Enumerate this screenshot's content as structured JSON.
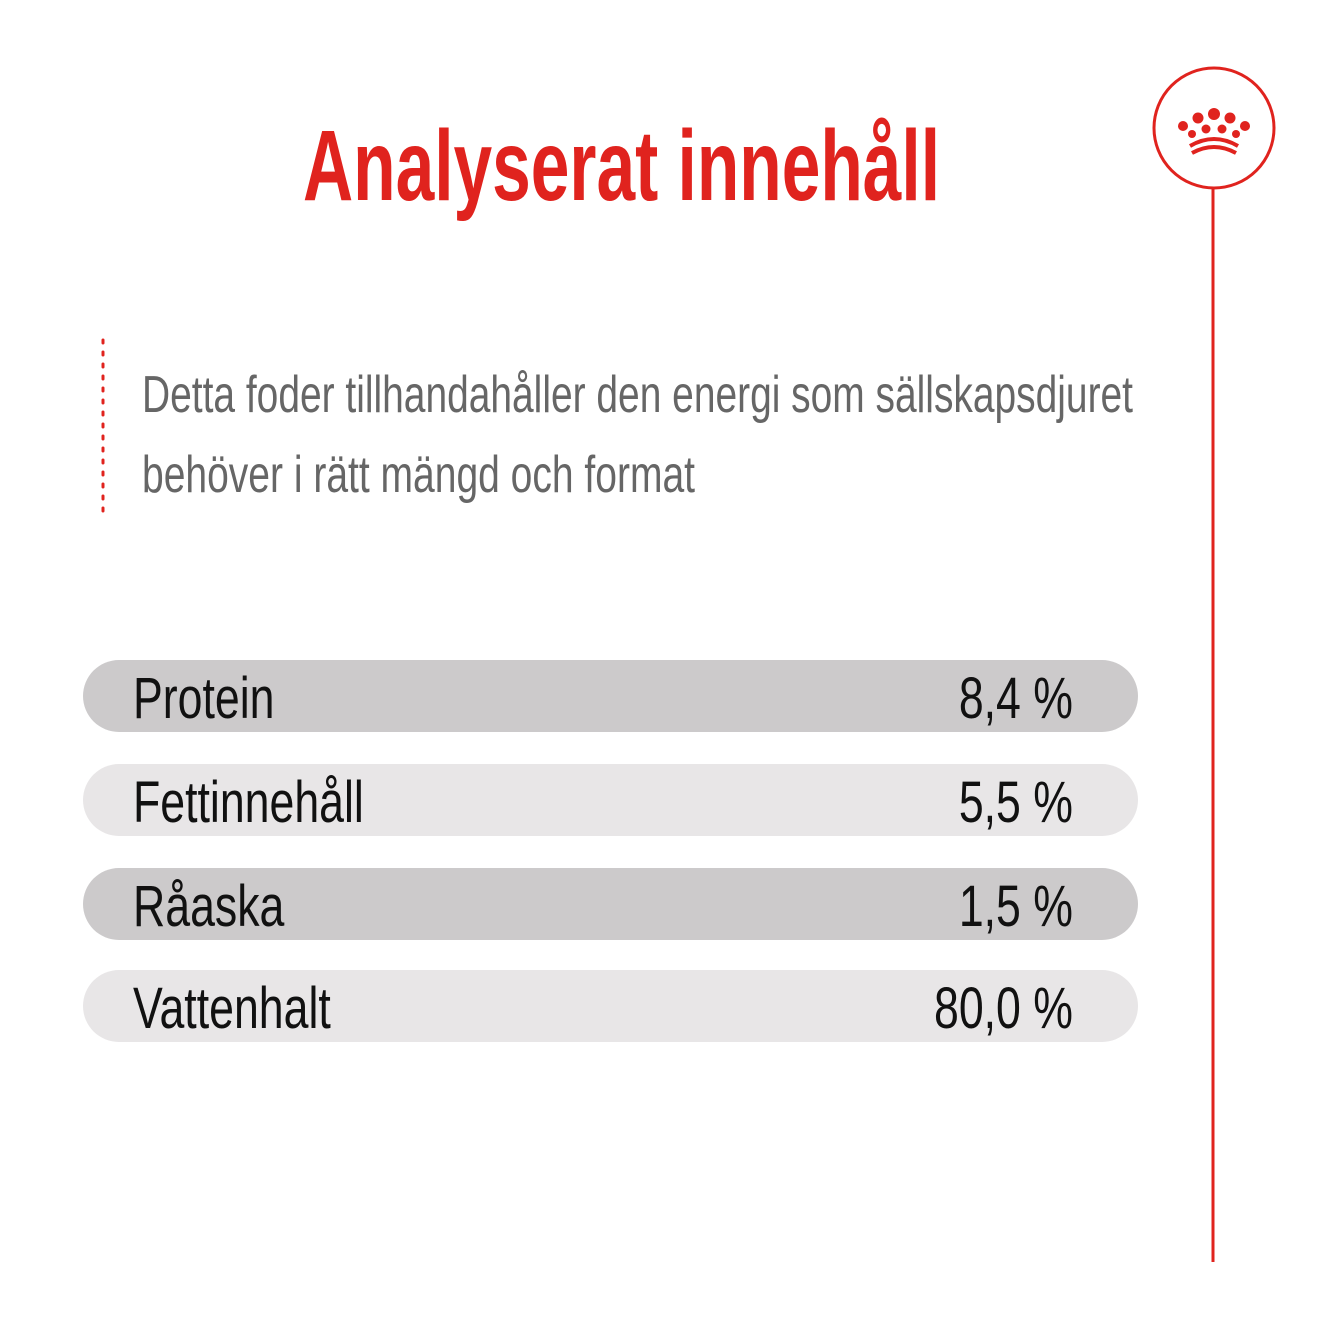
{
  "header": {
    "title": "Analyserat innehåll"
  },
  "intro": {
    "lines": [
      "Detta foder tillhandahåller den energi som sällskapsdjuret",
      "behöver i rätt mängd och format"
    ]
  },
  "table": {
    "rows": [
      [
        "Protein",
        "8,4 %"
      ],
      [
        "Fettinnehåll",
        "5,5 %"
      ],
      [
        "Råaska",
        "1,5 %"
      ],
      [
        "Vattenhalt",
        "80,0 %"
      ]
    ]
  }
}
